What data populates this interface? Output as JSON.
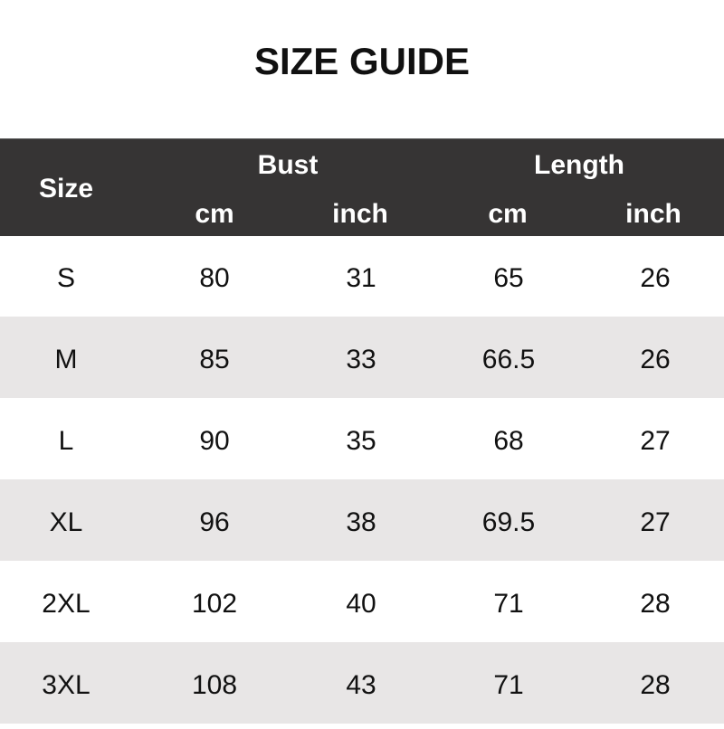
{
  "title": "SIZE GUIDE",
  "header": {
    "size": "Size",
    "bust": "Bust",
    "length": "Length",
    "bust_cm": "cm",
    "bust_inch": "inch",
    "length_cm": "cm",
    "length_inch": "inch"
  },
  "colors": {
    "header_bg": "#363434",
    "alt_row_bg": "#e8e6e6"
  },
  "rows": [
    [
      "S",
      "80",
      "31",
      "65",
      "26"
    ],
    [
      "M",
      "85",
      "33",
      "66.5",
      "26"
    ],
    [
      "L",
      "90",
      "35",
      "68",
      "27"
    ],
    [
      "XL",
      "96",
      "38",
      "69.5",
      "27"
    ],
    [
      "2XL",
      "102",
      "40",
      "71",
      "28"
    ],
    [
      "3XL",
      "108",
      "43",
      "71",
      "28"
    ]
  ]
}
